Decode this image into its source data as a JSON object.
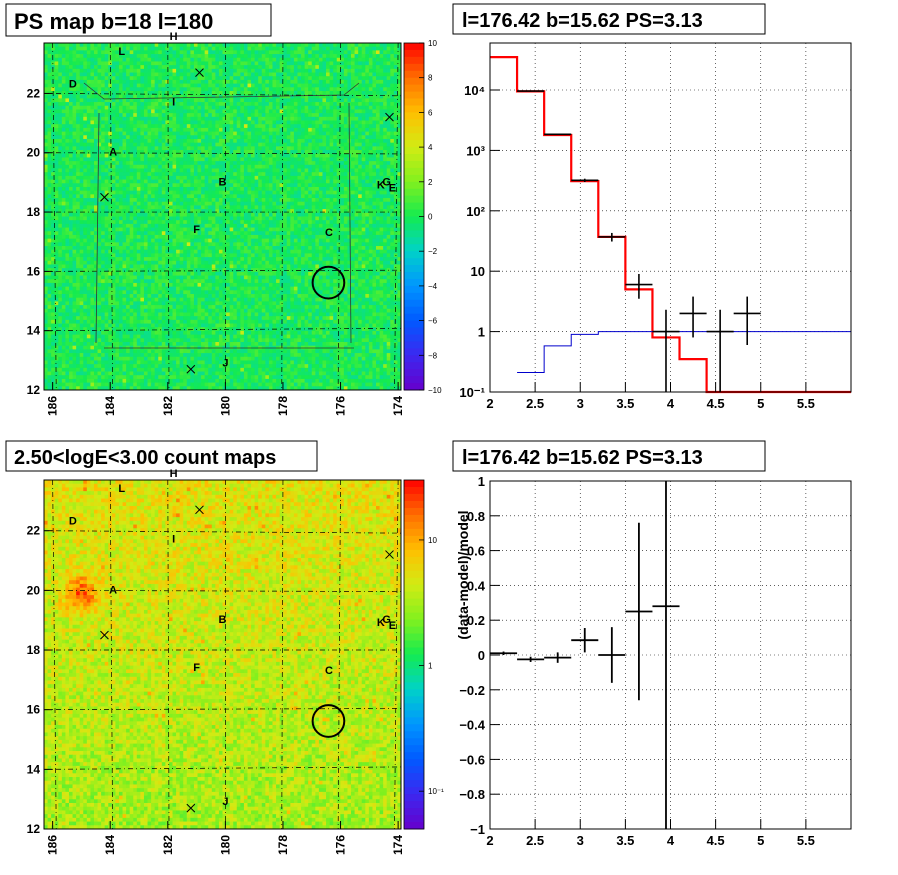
{
  "panels": {
    "tl": {
      "title": "PS map b=18 l=180",
      "x_ticks": [
        "186",
        "184",
        "182",
        "180",
        "178",
        "176",
        "174"
      ],
      "y_ticks": [
        "12",
        "14",
        "16",
        "18",
        "20",
        "22"
      ],
      "colorbar_ticks": [
        "10",
        "8",
        "6",
        "4",
        "2",
        "0",
        "−2",
        "−4",
        "−6",
        "−8",
        "−10"
      ]
    },
    "bl": {
      "title": "2.50<logE<3.00 count maps",
      "x_ticks": [
        "186",
        "184",
        "182",
        "180",
        "178",
        "176",
        "174"
      ],
      "y_ticks": [
        "12",
        "14",
        "16",
        "18",
        "20",
        "22"
      ],
      "colorbar_ticks": [
        "10",
        "1",
        "10⁻¹"
      ]
    },
    "tr": {
      "title": "l=176.42 b=15.62 PS=3.13",
      "x_ticks": [
        "2",
        "2.5",
        "3",
        "3.5",
        "4",
        "4.5",
        "5",
        "5.5"
      ],
      "y_ticks": [
        "10⁻¹",
        "1",
        "10",
        "10²",
        "10³",
        "10⁴"
      ]
    },
    "br": {
      "title": "l=176.42 b=15.62 PS=3.13",
      "ylabel": "(data-model)/model",
      "x_ticks": [
        "2",
        "2.5",
        "3",
        "3.5",
        "4",
        "4.5",
        "5",
        "5.5"
      ],
      "y_ticks": [
        "−1",
        "−0.8",
        "−0.6",
        "−0.4",
        "−0.2",
        "0",
        "0.2",
        "0.4",
        "0.6",
        "0.8",
        "1"
      ]
    }
  },
  "source_labels": [
    {
      "label": "A",
      "l": 183.9,
      "b": 19.9
    },
    {
      "label": "B",
      "l": 180.1,
      "b": 18.9
    },
    {
      "label": "C",
      "l": 176.4,
      "b": 17.2
    },
    {
      "label": "D",
      "l": 185.3,
      "b": 22.2
    },
    {
      "label": "E",
      "l": 174.2,
      "b": 18.7
    },
    {
      "label": "F",
      "l": 181.0,
      "b": 17.3
    },
    {
      "label": "G",
      "l": 174.4,
      "b": 18.9
    },
    {
      "label": "H",
      "l": 181.8,
      "b": 23.8
    },
    {
      "label": "I",
      "l": 181.8,
      "b": 21.6
    },
    {
      "label": "J",
      "l": 180.0,
      "b": 12.8
    },
    {
      "label": "K",
      "l": 174.6,
      "b": 18.8
    },
    {
      "label": "L",
      "l": 183.6,
      "b": 23.3
    }
  ],
  "chart_data": [
    {
      "type": "heatmap",
      "title": "PS map b=18 l=180",
      "xlim": [
        186.3,
        173.9
      ],
      "ylim": [
        12,
        23.7
      ],
      "zlim": [
        -10,
        10
      ],
      "x_ticks": [
        186,
        184,
        182,
        180,
        178,
        176,
        174
      ],
      "y_ticks": [
        12,
        14,
        16,
        18,
        20,
        22
      ],
      "colorbar_ticks": [
        10,
        8,
        6,
        4,
        2,
        0,
        -2,
        -4,
        -6,
        -8,
        -10
      ],
      "circle": {
        "l": 176.42,
        "b": 15.62,
        "r": 0.55
      },
      "crosses": [
        {
          "l": 180.9,
          "b": 22.7
        },
        {
          "l": 174.3,
          "b": 21.2
        },
        {
          "l": 184.2,
          "b": 18.5
        },
        {
          "l": 181.2,
          "b": 12.7
        }
      ],
      "typical_value": 0
    },
    {
      "type": "heatmap",
      "title": "2.50<logE<3.00 count maps",
      "xlim": [
        186.3,
        173.9
      ],
      "ylim": [
        12,
        23.7
      ],
      "zlim": [
        0.05,
        30
      ],
      "scale": "log",
      "x_ticks": [
        186,
        184,
        182,
        180,
        178,
        176,
        174
      ],
      "y_ticks": [
        12,
        14,
        16,
        18,
        20,
        22
      ],
      "colorbar_ticks": [
        10,
        1,
        0.1
      ],
      "circle": {
        "l": 176.42,
        "b": 15.62,
        "r": 0.55
      },
      "crosses": [
        {
          "l": 180.9,
          "b": 22.7
        },
        {
          "l": 174.3,
          "b": 21.2
        },
        {
          "l": 184.2,
          "b": 18.5
        },
        {
          "l": 181.2,
          "b": 12.7
        }
      ],
      "hotspot": {
        "l": 185.0,
        "b": 19.9
      }
    },
    {
      "type": "line",
      "title": "l=176.42 b=15.62 PS=3.13",
      "xlim": [
        2,
        6.0
      ],
      "ylim": [
        0.1,
        60000
      ],
      "yscale": "log",
      "grid": true,
      "x_ticks": [
        2,
        2.5,
        3,
        3.5,
        4,
        4.5,
        5,
        5.5
      ],
      "y_ticks": [
        0.1,
        1,
        10,
        100,
        1000,
        10000
      ],
      "series": [
        {
          "style": "step",
          "color": "#ff0000",
          "edges": [
            2,
            2.3,
            2.6,
            2.9,
            3.2,
            3.5,
            3.8,
            4.1,
            4.4,
            6.0
          ],
          "values": [
            35000,
            9500,
            1800,
            310,
            37,
            5,
            0.8,
            0.35,
            0.1
          ]
        },
        {
          "style": "step",
          "color": "#0000cc",
          "edges": [
            2.3,
            2.6,
            2.9,
            3.2,
            3.5,
            6.0
          ],
          "values": [
            0.21,
            0.58,
            0.9,
            1.0,
            1.0
          ]
        },
        {
          "style": "errorbar",
          "color": "#000000",
          "points": [
            {
              "x": 2.45,
              "y": 9600,
              "xerr": 0.15,
              "ylo": 9400,
              "yhi": 9800
            },
            {
              "x": 2.75,
              "y": 1850,
              "xerr": 0.15,
              "ylo": 1800,
              "yhi": 1900
            },
            {
              "x": 3.05,
              "y": 320,
              "xerr": 0.15,
              "ylo": 300,
              "yhi": 340
            },
            {
              "x": 3.35,
              "y": 37,
              "xerr": 0.15,
              "ylo": 31,
              "yhi": 43
            },
            {
              "x": 3.65,
              "y": 6,
              "xerr": 0.15,
              "ylo": 3.5,
              "yhi": 9
            },
            {
              "x": 3.95,
              "y": 1.0,
              "xerr": 0.15,
              "ylo": 0.1,
              "yhi": 2.3
            },
            {
              "x": 4.25,
              "y": 2.0,
              "xerr": 0.15,
              "ylo": 0.8,
              "yhi": 3.8
            },
            {
              "x": 4.55,
              "y": 1.0,
              "xerr": 0.15,
              "ylo": 0.1,
              "yhi": 2.3
            },
            {
              "x": 4.85,
              "y": 2.0,
              "xerr": 0.15,
              "ylo": 0.6,
              "yhi": 3.8
            }
          ]
        }
      ]
    },
    {
      "type": "scatter",
      "title": "l=176.42 b=15.62 PS=3.13",
      "ylabel": "(data-model)/model",
      "xlim": [
        2,
        6.0
      ],
      "ylim": [
        -1,
        1
      ],
      "grid": true,
      "x_ticks": [
        2,
        2.5,
        3,
        3.5,
        4,
        4.5,
        5,
        5.5
      ],
      "y_ticks": [
        -1,
        -0.8,
        -0.6,
        -0.4,
        -0.2,
        0,
        0.2,
        0.4,
        0.6,
        0.8,
        1
      ],
      "points": [
        {
          "x": 2.15,
          "y": 0.01,
          "xerr": 0.15,
          "yerr": 0.01
        },
        {
          "x": 2.45,
          "y": -0.025,
          "xerr": 0.15,
          "yerr": 0.015
        },
        {
          "x": 2.75,
          "y": -0.015,
          "xerr": 0.15,
          "yerr": 0.03
        },
        {
          "x": 3.05,
          "y": 0.085,
          "xerr": 0.15,
          "yerr": 0.07
        },
        {
          "x": 3.35,
          "y": 0.0,
          "xerr": 0.15,
          "yerr": 0.16
        },
        {
          "x": 3.65,
          "y": 0.25,
          "xerr": 0.15,
          "yerr": 0.51
        },
        {
          "x": 3.95,
          "y": 0.28,
          "xerr": 0.15,
          "yerr": 1.5
        }
      ]
    }
  ]
}
